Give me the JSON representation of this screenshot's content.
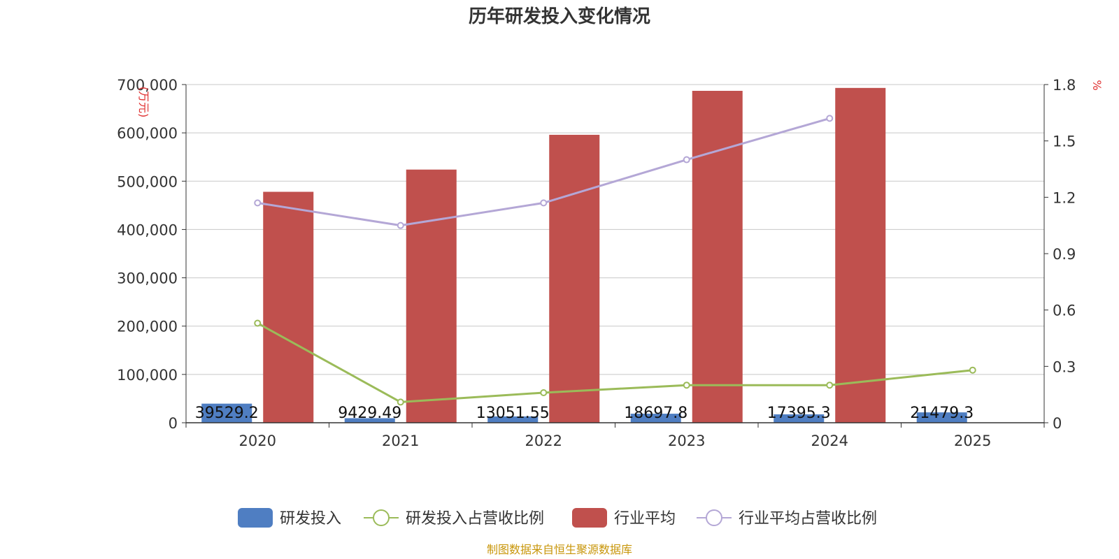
{
  "title": "历年研发投入变化情况",
  "source": "制图数据来自恒生聚源数据库",
  "colors": {
    "rd_bar": "#4f7ec2",
    "industry_bar": "#c0504d",
    "rd_ratio_line": "#9bbb59",
    "industry_ratio_line": "#b4a7d6",
    "grid": "#c8c8c8",
    "unit_text": "#e03030",
    "source_text": "#c8960a"
  },
  "chart_data": {
    "type": "bar",
    "title": "历年研发投入变化情况",
    "categories": [
      "2020",
      "2021",
      "2022",
      "2023",
      "2024",
      "2025"
    ],
    "y_left": {
      "unit": "(万元)",
      "min": 0,
      "max": 700000,
      "ticks": [
        "0",
        "100,000",
        "200,000",
        "300,000",
        "400,000",
        "500,000",
        "600,000",
        "700,000"
      ]
    },
    "y_right": {
      "unit": "%",
      "min": 0,
      "max": 1.8,
      "ticks": [
        "0",
        "0.3",
        "0.6",
        "0.9",
        "1.2",
        "1.5",
        "1.8"
      ]
    },
    "grid": true,
    "legend_position": "bottom",
    "series": [
      {
        "name": "研发投入",
        "type": "bar",
        "axis": "left",
        "values": [
          39529.2,
          9429.49,
          13051.55,
          18697.8,
          17395.3,
          21479.3
        ],
        "labels": [
          "39529.2",
          "9429.49",
          "13051.55",
          "18697.8",
          "17395.3",
          "21479.3"
        ]
      },
      {
        "name": "研发投入占营收比例",
        "type": "line",
        "axis": "right",
        "values": [
          0.53,
          0.11,
          0.16,
          0.2,
          0.2,
          0.28
        ]
      },
      {
        "name": "行业平均",
        "type": "bar",
        "axis": "left",
        "values": [
          478000,
          524000,
          596000,
          687000,
          693000,
          null
        ]
      },
      {
        "name": "行业平均占营收比例",
        "type": "line",
        "axis": "right",
        "values": [
          1.17,
          1.05,
          1.17,
          1.4,
          1.62,
          null
        ]
      }
    ]
  }
}
